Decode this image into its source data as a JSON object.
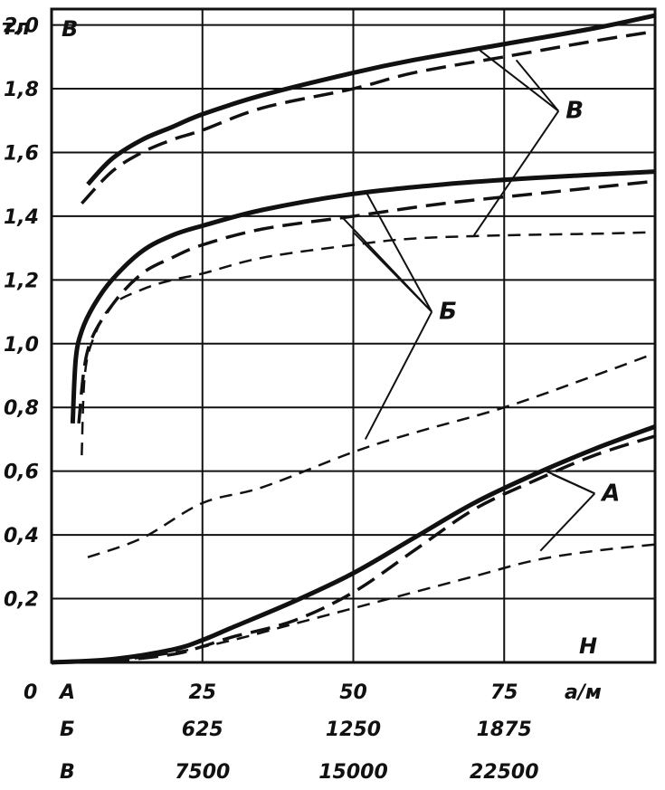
{
  "chart_data": {
    "type": "line",
    "ylabel": "тл",
    "y_axis_letter": "В",
    "x_axis_letter": "Н",
    "origin_label": "0",
    "x_unit": "а/м",
    "ylim": [
      0,
      2.05
    ],
    "xlim": [
      0,
      100
    ],
    "grid": true,
    "y_ticks": [
      "0,2",
      "0,4",
      "0,6",
      "0,8",
      "1,0",
      "1,2",
      "1,4",
      "1,6",
      "1,8",
      "2,0"
    ],
    "x_scales": [
      {
        "name": "А",
        "ticks": [
          "25",
          "50",
          "75"
        ]
      },
      {
        "name": "Б",
        "ticks": [
          "625",
          "1250",
          "1875"
        ]
      },
      {
        "name": "В",
        "ticks": [
          "7500",
          "15000",
          "22500"
        ]
      }
    ],
    "callouts": [
      "В",
      "Б",
      "А"
    ],
    "series": [
      {
        "group": "В",
        "style": "thick-solid",
        "scale": "В",
        "points": [
          [
            6,
            1.5
          ],
          [
            10,
            1.58
          ],
          [
            15,
            1.64
          ],
          [
            20,
            1.68
          ],
          [
            25,
            1.72
          ],
          [
            35,
            1.78
          ],
          [
            50,
            1.85
          ],
          [
            60,
            1.89
          ],
          [
            75,
            1.94
          ],
          [
            90,
            1.99
          ],
          [
            100,
            2.03
          ]
        ]
      },
      {
        "group": "В",
        "style": "dashed",
        "scale": "В",
        "points": [
          [
            5,
            1.44
          ],
          [
            10,
            1.54
          ],
          [
            15,
            1.6
          ],
          [
            20,
            1.64
          ],
          [
            25,
            1.67
          ],
          [
            35,
            1.74
          ],
          [
            50,
            1.8
          ],
          [
            60,
            1.85
          ],
          [
            75,
            1.9
          ],
          [
            90,
            1.95
          ],
          [
            100,
            1.98
          ]
        ]
      },
      {
        "group": "Б",
        "style": "thick-solid",
        "scale": "Б",
        "points": [
          [
            3.5,
            0.75
          ],
          [
            4,
            0.95
          ],
          [
            5,
            1.04
          ],
          [
            7,
            1.12
          ],
          [
            10,
            1.2
          ],
          [
            15,
            1.29
          ],
          [
            20,
            1.34
          ],
          [
            25,
            1.37
          ],
          [
            35,
            1.42
          ],
          [
            50,
            1.47
          ],
          [
            65,
            1.5
          ],
          [
            80,
            1.52
          ],
          [
            100,
            1.54
          ]
        ]
      },
      {
        "group": "Б",
        "style": "dashed",
        "scale": "Б",
        "points": [
          [
            4.5,
            0.75
          ],
          [
            6,
            0.98
          ],
          [
            10,
            1.12
          ],
          [
            15,
            1.22
          ],
          [
            20,
            1.27
          ],
          [
            25,
            1.31
          ],
          [
            35,
            1.36
          ],
          [
            50,
            1.4
          ],
          [
            65,
            1.44
          ],
          [
            80,
            1.47
          ],
          [
            100,
            1.51
          ]
        ]
      },
      {
        "group": "Б",
        "style": "thin-dashed",
        "scale": "Б",
        "points": [
          [
            5,
            0.65
          ],
          [
            5.5,
            0.9
          ],
          [
            7,
            1.02
          ],
          [
            10,
            1.12
          ],
          [
            15,
            1.17
          ],
          [
            20,
            1.2
          ],
          [
            25,
            1.22
          ],
          [
            35,
            1.27
          ],
          [
            50,
            1.31
          ],
          [
            60,
            1.33
          ],
          [
            75,
            1.34
          ],
          [
            90,
            1.345
          ],
          [
            100,
            1.35
          ]
        ]
      },
      {
        "group": "А",
        "style": "thick-solid",
        "scale": "А",
        "points": [
          [
            0,
            0
          ],
          [
            10,
            0.01
          ],
          [
            20,
            0.04
          ],
          [
            25,
            0.07
          ],
          [
            30,
            0.11
          ],
          [
            40,
            0.19
          ],
          [
            50,
            0.28
          ],
          [
            60,
            0.39
          ],
          [
            70,
            0.5
          ],
          [
            80,
            0.59
          ],
          [
            90,
            0.67
          ],
          [
            100,
            0.74
          ]
        ]
      },
      {
        "group": "А",
        "style": "dashed",
        "scale": "А",
        "points": [
          [
            0,
            0
          ],
          [
            10,
            0.005
          ],
          [
            20,
            0.025
          ],
          [
            25,
            0.05
          ],
          [
            30,
            0.08
          ],
          [
            40,
            0.13
          ],
          [
            50,
            0.22
          ],
          [
            60,
            0.35
          ],
          [
            70,
            0.48
          ],
          [
            80,
            0.57
          ],
          [
            90,
            0.65
          ],
          [
            100,
            0.71
          ]
        ]
      },
      {
        "group": "А",
        "style": "thin-dashed",
        "scale": "А",
        "points": [
          [
            0,
            0
          ],
          [
            10,
            0.005
          ],
          [
            20,
            0.03
          ],
          [
            30,
            0.07
          ],
          [
            40,
            0.12
          ],
          [
            50,
            0.17
          ],
          [
            60,
            0.22
          ],
          [
            70,
            0.27
          ],
          [
            80,
            0.32
          ],
          [
            90,
            0.35
          ],
          [
            100,
            0.37
          ]
        ]
      },
      {
        "group": "А",
        "style": "thin-dashed",
        "scale": "А",
        "points": [
          [
            6,
            0.33
          ],
          [
            15,
            0.39
          ],
          [
            25,
            0.5
          ],
          [
            35,
            0.55
          ],
          [
            50,
            0.66
          ],
          [
            60,
            0.72
          ],
          [
            75,
            0.8
          ],
          [
            90,
            0.9
          ],
          [
            100,
            0.97
          ]
        ]
      }
    ]
  }
}
